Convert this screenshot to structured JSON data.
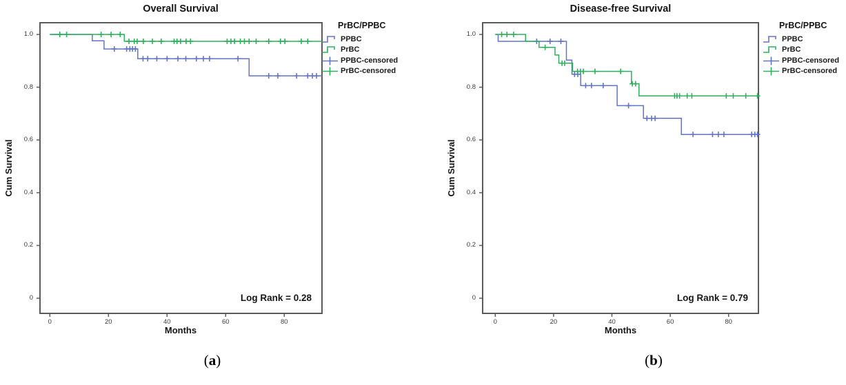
{
  "colors": {
    "ppbc": "#6074c6",
    "prbc": "#2db05a",
    "frame": "#595a5c",
    "tick_text": "#3a3a3c",
    "text": "#141414"
  },
  "chart_data": [
    {
      "type": "line",
      "variant": "kaplan-meier-step",
      "title": "Overall Survival",
      "xlabel": "Months",
      "ylabel": "Cum Survival",
      "annotation": "Log Rank = 0.28",
      "caption": {
        "open": "(",
        "letter": "a",
        "close": ")"
      },
      "grid": false,
      "xlim": [
        0,
        93
      ],
      "ylim": [
        0,
        1.0
      ],
      "x_ticks": [
        0,
        20,
        40,
        60,
        80
      ],
      "y_ticks": [
        [
          "1.0",
          1.0
        ],
        [
          "0.8",
          0.8
        ],
        [
          "0.6",
          0.6
        ],
        [
          "0.4",
          0.4
        ],
        [
          "0.2",
          0.2
        ],
        [
          "0",
          0.0
        ]
      ],
      "legend": {
        "title": "PrBC/PPBC",
        "position": "right-top",
        "entries": [
          {
            "label": "PPBC",
            "series": "ppbc",
            "symbol": "step"
          },
          {
            "label": "PrBC",
            "series": "prbc",
            "symbol": "step"
          },
          {
            "label": "PPBC-censored",
            "series": "ppbc",
            "symbol": "plus"
          },
          {
            "label": "PrBC-censored",
            "series": "prbc",
            "symbol": "plus"
          }
        ]
      },
      "series": [
        {
          "key": "ppbc",
          "name": "PPBC",
          "steps": [
            [
              0,
              1.0
            ],
            [
              14.5,
              0.976
            ],
            [
              18.5,
              0.945
            ],
            [
              30,
              0.908
            ],
            [
              68,
              0.843
            ],
            [
              93,
              0.843
            ]
          ],
          "censored": [
            [
              22,
              0.945
            ],
            [
              26.2,
              0.945
            ],
            [
              27.3,
              0.945
            ],
            [
              28.2,
              0.945
            ],
            [
              29.2,
              0.945
            ],
            [
              31.8,
              0.908
            ],
            [
              33.4,
              0.908
            ],
            [
              36.5,
              0.908
            ],
            [
              40,
              0.908
            ],
            [
              43.7,
              0.908
            ],
            [
              46.4,
              0.908
            ],
            [
              50,
              0.908
            ],
            [
              52.4,
              0.908
            ],
            [
              54.5,
              0.908
            ],
            [
              64.2,
              0.908
            ],
            [
              74.7,
              0.843
            ],
            [
              77.8,
              0.843
            ],
            [
              84.2,
              0.843
            ],
            [
              88,
              0.843
            ],
            [
              89.6,
              0.843
            ],
            [
              91,
              0.843
            ]
          ]
        },
        {
          "key": "prbc",
          "name": "PrBC",
          "steps": [
            [
              0,
              1.0
            ],
            [
              25.4,
              0.974
            ],
            [
              93,
              0.974
            ]
          ],
          "censored": [
            [
              3.4,
              1.0
            ],
            [
              5.7,
              1.0
            ],
            [
              17.5,
              1.0
            ],
            [
              20.9,
              1.0
            ],
            [
              24,
              1.0
            ],
            [
              27,
              0.974
            ],
            [
              28.8,
              0.974
            ],
            [
              29.8,
              0.974
            ],
            [
              31.9,
              0.974
            ],
            [
              35,
              0.974
            ],
            [
              38,
              0.974
            ],
            [
              42.4,
              0.974
            ],
            [
              43.4,
              0.974
            ],
            [
              44.6,
              0.974
            ],
            [
              46.5,
              0.974
            ],
            [
              48,
              0.974
            ],
            [
              60.5,
              0.974
            ],
            [
              61.8,
              0.974
            ],
            [
              63,
              0.974
            ],
            [
              65,
              0.974
            ],
            [
              66.4,
              0.974
            ],
            [
              68,
              0.974
            ],
            [
              70.4,
              0.974
            ],
            [
              74.7,
              0.974
            ],
            [
              78.7,
              0.974
            ],
            [
              80.2,
              0.974
            ],
            [
              85.8,
              0.974
            ],
            [
              88,
              0.974
            ]
          ]
        }
      ]
    },
    {
      "type": "line",
      "variant": "kaplan-meier-step",
      "title": "Disease-free Survival",
      "xlabel": "Months",
      "ylabel": "Cum Survival",
      "annotation": "Log Rank = 0.79",
      "caption": {
        "open": "(",
        "letter": "b",
        "close": ")"
      },
      "grid": false,
      "xlim": [
        0,
        90
      ],
      "ylim": [
        0,
        1.0
      ],
      "x_ticks": [
        0,
        20,
        40,
        60,
        80
      ],
      "y_ticks": [
        [
          "1.0",
          1.0
        ],
        [
          "0.8",
          0.8
        ],
        [
          "0.6",
          0.6
        ],
        [
          "0.4",
          0.4
        ],
        [
          "0.2",
          0.2
        ],
        [
          "0",
          0.0
        ]
      ],
      "legend": {
        "title": "PrBC/PPBC",
        "position": "right-top",
        "entries": [
          {
            "label": "PPBC",
            "series": "ppbc",
            "symbol": "step"
          },
          {
            "label": "PrBC",
            "series": "prbc",
            "symbol": "step"
          },
          {
            "label": "PPBC-censored",
            "series": "ppbc",
            "symbol": "plus"
          },
          {
            "label": "PrBC-censored",
            "series": "prbc",
            "symbol": "plus"
          }
        ]
      },
      "series": [
        {
          "key": "ppbc",
          "name": "PPBC",
          "steps": [
            [
              0,
              1.0
            ],
            [
              1,
              0.974
            ],
            [
              24.4,
              0.903
            ],
            [
              26.3,
              0.849
            ],
            [
              29.3,
              0.806
            ],
            [
              41.8,
              0.73
            ],
            [
              50.8,
              0.682
            ],
            [
              63.8,
              0.621
            ],
            [
              90,
              0.621
            ]
          ],
          "censored": [
            [
              14.2,
              0.974
            ],
            [
              18.8,
              0.974
            ],
            [
              22.5,
              0.974
            ],
            [
              27.2,
              0.849
            ],
            [
              28.3,
              0.849
            ],
            [
              31,
              0.806
            ],
            [
              33,
              0.806
            ],
            [
              37,
              0.806
            ],
            [
              45.7,
              0.73
            ],
            [
              52,
              0.682
            ],
            [
              53.6,
              0.682
            ],
            [
              54.8,
              0.682
            ],
            [
              67.8,
              0.621
            ],
            [
              74.5,
              0.621
            ],
            [
              76.5,
              0.621
            ],
            [
              78.4,
              0.621
            ],
            [
              87.9,
              0.621
            ],
            [
              89,
              0.621
            ],
            [
              89.9,
              0.621
            ]
          ]
        },
        {
          "key": "prbc",
          "name": "PrBC",
          "steps": [
            [
              0,
              1.0
            ],
            [
              10.4,
              0.974
            ],
            [
              15,
              0.951
            ],
            [
              20.5,
              0.922
            ],
            [
              21.8,
              0.891
            ],
            [
              26.5,
              0.86
            ],
            [
              46.7,
              0.813
            ],
            [
              49.3,
              0.767
            ],
            [
              90,
              0.767
            ]
          ],
          "censored": [
            [
              2.2,
              1.0
            ],
            [
              4,
              1.0
            ],
            [
              6.3,
              1.0
            ],
            [
              17.1,
              0.951
            ],
            [
              22.9,
              0.891
            ],
            [
              23.8,
              0.891
            ],
            [
              28.2,
              0.86
            ],
            [
              29.2,
              0.86
            ],
            [
              30.2,
              0.86
            ],
            [
              34.2,
              0.86
            ],
            [
              43,
              0.86
            ],
            [
              47,
              0.813
            ],
            [
              48.1,
              0.813
            ],
            [
              61.5,
              0.767
            ],
            [
              62.3,
              0.767
            ],
            [
              63.2,
              0.767
            ],
            [
              65.8,
              0.767
            ],
            [
              67.4,
              0.767
            ],
            [
              79.2,
              0.767
            ],
            [
              81.6,
              0.767
            ],
            [
              85.9,
              0.767
            ],
            [
              89.9,
              0.767
            ]
          ]
        }
      ]
    }
  ]
}
